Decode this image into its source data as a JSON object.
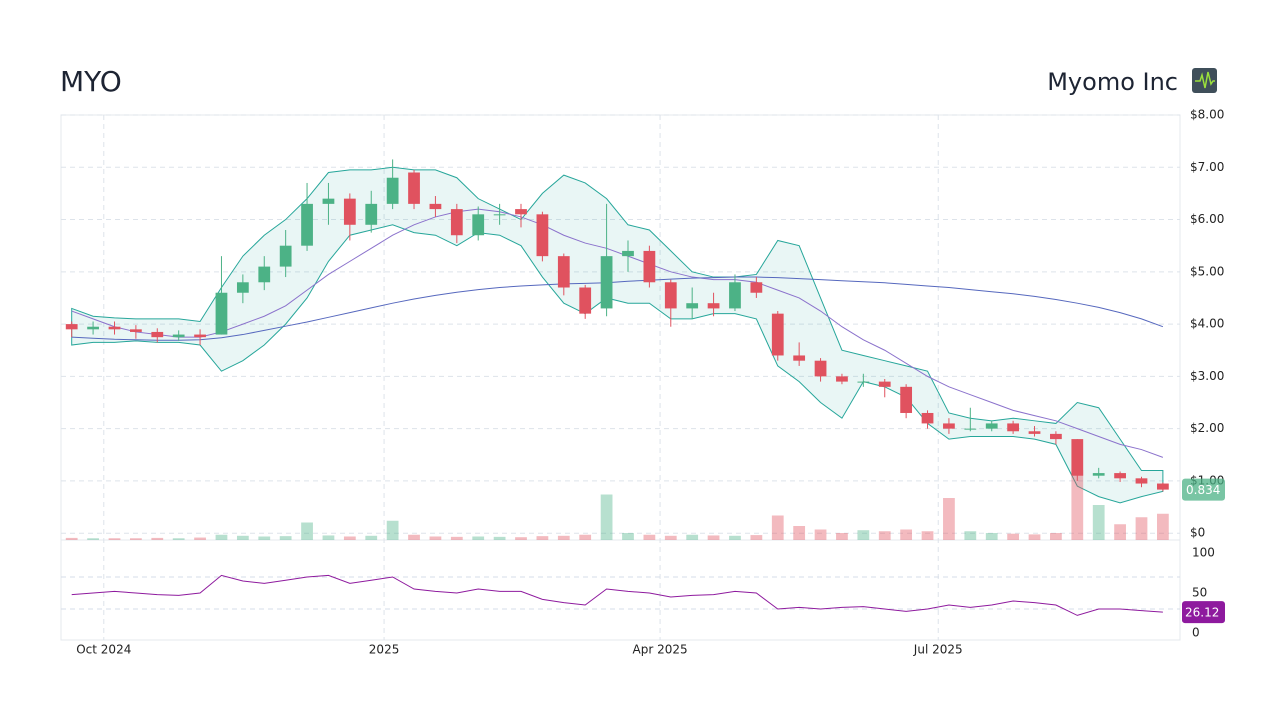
{
  "chart_data": {
    "type": "candlestick",
    "title": "MYO",
    "subtitle": "Myomo Inc",
    "xlim": [
      0,
      52.3
    ],
    "xticks": [
      {
        "value": 2,
        "label": "Oct 2024"
      },
      {
        "value": 15.1,
        "label": "2025"
      },
      {
        "value": 28,
        "label": "Apr 2025"
      },
      {
        "value": 41,
        "label": "Jul 2025"
      }
    ],
    "ylim": [
      -0.13,
      8
    ],
    "yticks": [
      {
        "value": 0,
        "label": "$0"
      },
      {
        "value": 1,
        "label": "$1.00"
      },
      {
        "value": 2,
        "label": "$2.00"
      },
      {
        "value": 3,
        "label": "$3.00"
      },
      {
        "value": 4,
        "label": "$4.00"
      },
      {
        "value": 5,
        "label": "$5.00"
      },
      {
        "value": 6,
        "label": "$6.00"
      },
      {
        "value": 7,
        "label": "$7.00"
      },
      {
        "value": 8,
        "label": "$8.00"
      }
    ],
    "grid": true,
    "up_color": "#4cb286",
    "down_color": "#e0525f",
    "open": [
      4.0,
      3.9,
      3.95,
      3.9,
      3.85,
      3.75,
      3.8,
      3.8,
      4.6,
      4.8,
      5.1,
      5.5,
      6.3,
      6.4,
      5.9,
      6.3,
      6.9,
      6.3,
      6.2,
      5.7,
      6.1,
      6.2,
      6.1,
      5.3,
      4.7,
      4.3,
      5.3,
      5.4,
      4.8,
      4.3,
      4.4,
      4.3,
      4.8,
      4.2,
      3.4,
      3.3,
      3.0,
      2.9,
      2.9,
      2.8,
      2.3,
      2.1,
      2.0,
      2.0,
      2.1,
      1.95,
      1.9,
      1.8,
      1.1,
      1.15,
      1.05,
      0.95
    ],
    "high": [
      4.05,
      4.05,
      4.05,
      3.98,
      3.92,
      3.88,
      3.9,
      5.3,
      4.95,
      5.3,
      5.8,
      6.7,
      6.7,
      6.5,
      6.55,
      7.15,
      6.95,
      6.45,
      6.3,
      6.25,
      6.3,
      6.3,
      6.15,
      5.35,
      4.75,
      6.3,
      5.6,
      5.5,
      4.85,
      4.7,
      4.6,
      4.95,
      4.9,
      4.25,
      3.65,
      3.35,
      3.05,
      3.05,
      2.95,
      2.85,
      2.35,
      2.2,
      2.4,
      2.15,
      2.15,
      2.05,
      1.95,
      1.8,
      1.25,
      1.18,
      1.08,
      0.97
    ],
    "low": [
      3.75,
      3.8,
      3.8,
      3.72,
      3.65,
      3.68,
      3.6,
      3.8,
      4.4,
      4.65,
      4.9,
      5.4,
      5.9,
      5.6,
      5.75,
      6.2,
      6.2,
      6.05,
      5.55,
      5.6,
      5.9,
      5.85,
      5.2,
      4.55,
      4.1,
      4.15,
      5.0,
      4.7,
      3.95,
      4.1,
      4.15,
      4.25,
      4.5,
      3.3,
      3.2,
      2.9,
      2.85,
      2.8,
      2.6,
      2.2,
      2.0,
      1.9,
      1.95,
      1.95,
      1.9,
      1.85,
      1.7,
      1.0,
      1.05,
      0.98,
      0.88,
      0.8
    ],
    "close": [
      3.9,
      3.95,
      3.9,
      3.85,
      3.75,
      3.8,
      3.75,
      4.6,
      4.8,
      5.1,
      5.5,
      6.3,
      6.4,
      5.9,
      6.3,
      6.8,
      6.3,
      6.2,
      5.7,
      6.1,
      6.1,
      6.1,
      5.3,
      4.7,
      4.2,
      5.3,
      5.4,
      4.8,
      4.3,
      4.4,
      4.3,
      4.8,
      4.6,
      3.4,
      3.3,
      3.0,
      2.9,
      2.9,
      2.8,
      2.3,
      2.1,
      2.0,
      2.0,
      2.1,
      1.95,
      1.9,
      1.8,
      1.1,
      1.15,
      1.05,
      0.95,
      0.834
    ],
    "bands": {
      "color": "#26a69a",
      "upper": [
        4.3,
        4.15,
        4.12,
        4.1,
        4.1,
        4.1,
        4.05,
        4.7,
        5.3,
        5.7,
        6.0,
        6.4,
        6.9,
        6.95,
        6.95,
        7.0,
        6.95,
        6.95,
        6.8,
        6.4,
        6.2,
        6.0,
        6.5,
        6.85,
        6.7,
        6.4,
        5.9,
        5.8,
        5.4,
        5.0,
        4.9,
        4.9,
        4.95,
        5.6,
        5.5,
        4.5,
        3.5,
        3.4,
        3.3,
        3.2,
        3.1,
        2.3,
        2.2,
        2.15,
        2.2,
        2.15,
        2.1,
        2.5,
        2.4,
        1.8,
        1.2,
        1.2
      ],
      "lower": [
        3.6,
        3.65,
        3.65,
        3.68,
        3.65,
        3.65,
        3.6,
        3.1,
        3.3,
        3.6,
        4.0,
        4.5,
        5.2,
        5.7,
        5.8,
        5.9,
        5.75,
        5.7,
        5.5,
        5.75,
        5.7,
        5.5,
        4.9,
        4.4,
        4.2,
        4.5,
        4.4,
        4.4,
        4.1,
        4.1,
        4.2,
        4.2,
        4.1,
        3.2,
        2.9,
        2.5,
        2.2,
        2.9,
        2.8,
        2.6,
        2.1,
        1.8,
        1.85,
        1.85,
        1.85,
        1.8,
        1.7,
        0.9,
        0.7,
        0.58,
        0.7,
        0.8
      ]
    },
    "ma_50": {
      "color": "#8b72cc",
      "values": [
        4.25,
        4.1,
        3.95,
        3.85,
        3.8,
        3.75,
        3.75,
        3.85,
        4.0,
        4.15,
        4.35,
        4.65,
        4.95,
        5.2,
        5.45,
        5.7,
        5.9,
        6.05,
        6.15,
        6.2,
        6.15,
        6.05,
        5.9,
        5.7,
        5.55,
        5.45,
        5.3,
        5.15,
        5.0,
        4.9,
        4.85,
        4.85,
        4.8,
        4.65,
        4.5,
        4.25,
        3.95,
        3.7,
        3.5,
        3.25,
        3.0,
        2.8,
        2.65,
        2.5,
        2.35,
        2.25,
        2.15,
        2.0,
        1.85,
        1.7,
        1.6,
        1.45
      ]
    },
    "ma_200": {
      "color": "#5668be",
      "values": [
        3.75,
        3.73,
        3.71,
        3.7,
        3.69,
        3.69,
        3.7,
        3.74,
        3.8,
        3.88,
        3.96,
        4.04,
        4.13,
        4.22,
        4.31,
        4.4,
        4.48,
        4.55,
        4.61,
        4.66,
        4.7,
        4.73,
        4.75,
        4.77,
        4.78,
        4.79,
        4.82,
        4.84,
        4.86,
        4.88,
        4.89,
        4.9,
        4.9,
        4.89,
        4.87,
        4.85,
        4.83,
        4.81,
        4.79,
        4.76,
        4.73,
        4.7,
        4.66,
        4.62,
        4.58,
        4.53,
        4.47,
        4.4,
        4.32,
        4.22,
        4.1,
        3.95
      ]
    },
    "volume": [
      60000,
      50000,
      50000,
      50000,
      60000,
      50000,
      70000,
      150000,
      120000,
      100000,
      110000,
      500000,
      130000,
      100000,
      120000,
      550000,
      150000,
      100000,
      90000,
      100000,
      90000,
      80000,
      110000,
      120000,
      150000,
      1300000,
      200000,
      150000,
      120000,
      150000,
      130000,
      120000,
      140000,
      700000,
      400000,
      300000,
      200000,
      280000,
      250000,
      300000,
      250000,
      1200000,
      250000,
      200000,
      180000,
      160000,
      200000,
      2000000,
      1000000,
      450000,
      650000,
      750000
    ],
    "rsi": {
      "color": "#8e1a9e",
      "ylim": [
        -8.75,
        116.25
      ],
      "yticks": [
        0,
        50,
        100
      ],
      "levels": [
        30,
        70
      ],
      "values": [
        48,
        50,
        52,
        50,
        48,
        47,
        50,
        72,
        65,
        62,
        66,
        70,
        72,
        62,
        66,
        70,
        55,
        52,
        50,
        55,
        52,
        52,
        42,
        38,
        35,
        55,
        52,
        50,
        45,
        47,
        48,
        52,
        50,
        30,
        32,
        30,
        32,
        33,
        30,
        27,
        30,
        35,
        32,
        35,
        40,
        38,
        35,
        22,
        30,
        30,
        28,
        26.12
      ]
    }
  }
}
